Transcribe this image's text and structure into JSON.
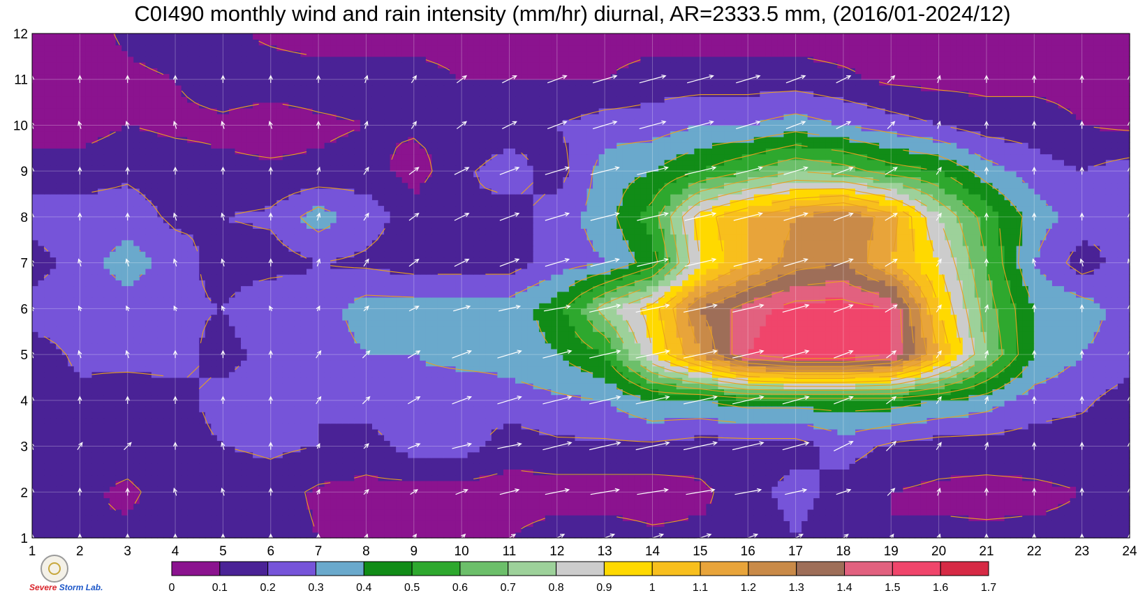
{
  "title": "C0I490 monthly wind and rain intensity (mm/hr) diurnal, AR=2333.5 mm, (2016/01-2024/12)",
  "logo": {
    "text_a": "Severe",
    "text_b": "Storm",
    "text_c": "Lab."
  },
  "chart_data": {
    "type": "heatmap",
    "title": "C0I490 monthly wind and rain intensity (mm/hr) diurnal, AR=2333.5 mm, (2016/01-2024/12)",
    "xlabel": "",
    "ylabel": "",
    "xlim": [
      1,
      24
    ],
    "ylim": [
      1,
      12
    ],
    "xticks": [
      1,
      2,
      3,
      4,
      5,
      6,
      7,
      8,
      9,
      10,
      11,
      12,
      13,
      14,
      15,
      16,
      17,
      18,
      19,
      20,
      21,
      22,
      23,
      24
    ],
    "yticks": [
      1,
      2,
      3,
      4,
      5,
      6,
      7,
      8,
      9,
      10,
      11,
      12
    ],
    "grid": true,
    "colorbar": {
      "placement": "bottom",
      "levels": [
        0,
        0.1,
        0.2,
        0.3,
        0.4,
        0.5,
        0.6,
        0.7,
        0.8,
        0.9,
        1,
        1.1,
        1.2,
        1.3,
        1.4,
        1.5,
        1.6,
        1.7
      ],
      "labels": [
        "0",
        "0.1",
        "0.2",
        "0.3",
        "0.4",
        "0.5",
        "0.6",
        "0.7",
        "0.8",
        "0.9",
        "1",
        "1.1",
        "1.2",
        "1.3",
        "1.4",
        "1.5",
        "1.6",
        "1.7"
      ],
      "colors": [
        "#8b138f",
        "#4a2296",
        "#7654d9",
        "#6aa9cc",
        "#118c17",
        "#2ea82e",
        "#6cbf6a",
        "#9dd19a",
        "#cccccc",
        "#ffd900",
        "#f8bf1d",
        "#e8a43a",
        "#c98a48",
        "#9e6e58",
        "#e2617f",
        "#f0456b",
        "#d62a45"
      ]
    },
    "x": [
      1,
      2,
      3,
      4,
      5,
      6,
      7,
      8,
      9,
      10,
      11,
      12,
      13,
      14,
      15,
      16,
      17,
      18,
      19,
      20,
      21,
      22,
      23,
      24
    ],
    "y": [
      1,
      2,
      3,
      4,
      5,
      6,
      7,
      8,
      9,
      10,
      11,
      12
    ],
    "rain": [
      [
        0.15,
        0.1,
        0.12,
        0.17,
        0.18,
        0.15,
        0.1,
        0.1,
        0.1,
        0.1,
        0.1,
        0.15,
        0.15,
        0.12,
        0.12,
        0.1,
        0.2,
        0.1,
        0.1,
        0.12,
        0.12,
        0.12,
        0.12,
        0.15
      ],
      [
        0.15,
        0.12,
        0.08,
        0.15,
        0.12,
        0.15,
        0.08,
        0.07,
        0.05,
        0.05,
        0.05,
        0.05,
        0.05,
        0.05,
        0.08,
        0.15,
        0.25,
        0.15,
        0.1,
        0.08,
        0.07,
        0.08,
        0.1,
        0.15
      ],
      [
        0.15,
        0.15,
        0.15,
        0.15,
        0.2,
        0.22,
        0.2,
        0.15,
        0.25,
        0.25,
        0.15,
        0.18,
        0.18,
        0.18,
        0.15,
        0.15,
        0.15,
        0.25,
        0.18,
        0.15,
        0.15,
        0.15,
        0.15,
        0.15
      ],
      [
        0.15,
        0.18,
        0.12,
        0.15,
        0.25,
        0.25,
        0.2,
        0.25,
        0.25,
        0.2,
        0.25,
        0.28,
        0.3,
        0.4,
        0.4,
        0.45,
        0.45,
        0.45,
        0.45,
        0.4,
        0.35,
        0.25,
        0.22,
        0.15
      ],
      [
        0.15,
        0.22,
        0.25,
        0.25,
        0.15,
        0.25,
        0.25,
        0.3,
        0.3,
        0.35,
        0.35,
        0.4,
        0.5,
        0.9,
        1.2,
        1.5,
        1.6,
        1.6,
        1.5,
        1.1,
        0.7,
        0.4,
        0.3,
        0.25
      ],
      [
        0.25,
        0.25,
        0.25,
        0.22,
        0.2,
        0.3,
        0.25,
        0.35,
        0.35,
        0.35,
        0.35,
        0.45,
        0.75,
        0.95,
        1.3,
        1.45,
        1.55,
        1.55,
        1.5,
        1.0,
        0.65,
        0.4,
        0.35,
        0.25
      ],
      [
        0.15,
        0.25,
        0.35,
        0.25,
        0.15,
        0.15,
        0.2,
        0.18,
        0.15,
        0.15,
        0.15,
        0.25,
        0.3,
        0.45,
        0.9,
        1.1,
        1.25,
        1.3,
        1.1,
        0.9,
        0.6,
        0.3,
        0.15,
        0.25
      ],
      [
        0.25,
        0.25,
        0.25,
        0.18,
        0.2,
        0.22,
        0.35,
        0.25,
        0.15,
        0.2,
        0.15,
        0.25,
        0.35,
        0.55,
        0.95,
        1.1,
        1.2,
        1.3,
        1.15,
        0.8,
        0.55,
        0.35,
        0.25,
        0.2
      ],
      [
        0.15,
        0.15,
        0.18,
        0.15,
        0.12,
        0.12,
        0.12,
        0.15,
        0.05,
        0.18,
        0.25,
        0.15,
        0.35,
        0.4,
        0.5,
        0.6,
        0.7,
        0.65,
        0.55,
        0.5,
        0.35,
        0.25,
        0.2,
        0.25
      ],
      [
        0.05,
        0.05,
        0.1,
        0.08,
        0.08,
        0.05,
        0.08,
        0.1,
        0.12,
        0.12,
        0.15,
        0.2,
        0.25,
        0.25,
        0.3,
        0.3,
        0.35,
        0.3,
        0.25,
        0.2,
        0.15,
        0.15,
        0.1,
        0.08
      ],
      [
        0.05,
        0.05,
        0.08,
        0.1,
        0.15,
        0.15,
        0.15,
        0.15,
        0.15,
        0.1,
        0.1,
        0.1,
        0.1,
        0.15,
        0.15,
        0.15,
        0.15,
        0.12,
        0.08,
        0.07,
        0.07,
        0.07,
        0.07,
        0.08
      ],
      [
        0.05,
        0.05,
        0.12,
        0.15,
        0.12,
        0.08,
        0.05,
        0.05,
        0.05,
        0.05,
        0.05,
        0.05,
        0.05,
        0.05,
        0.05,
        0.05,
        0.05,
        0.05,
        0.05,
        0.05,
        0.05,
        0.05,
        0.05,
        0.05
      ]
    ],
    "wind_vectors": {
      "description": "white arrows at every hour/month grid node",
      "hours": [
        1,
        2,
        3,
        4,
        5,
        6,
        7,
        8,
        9,
        10,
        11,
        12,
        13,
        14,
        15,
        16,
        17,
        18,
        19,
        20,
        21,
        22,
        23,
        24
      ],
      "months": [
        1,
        2,
        3,
        4,
        5,
        6,
        7,
        8,
        9,
        10,
        11,
        12
      ],
      "u": [
        [
          0.0,
          0.0,
          0.0,
          0.0,
          0.0,
          0.0,
          0.0,
          0.1,
          0.2,
          0.3,
          0.5,
          0.6,
          0.8,
          0.9,
          0.9,
          0.8,
          0.6,
          0.4,
          0.2,
          0.1,
          0.0,
          0.0,
          0.0,
          0.0
        ],
        [
          0.0,
          0.0,
          0.0,
          -0.1,
          -0.1,
          0.0,
          0.1,
          0.2,
          0.3,
          0.5,
          0.8,
          1.0,
          1.2,
          1.3,
          1.2,
          1.1,
          0.9,
          0.6,
          0.3,
          0.1,
          0.0,
          0.0,
          0.0,
          0.0
        ],
        [
          -0.1,
          0.2,
          0.3,
          0.0,
          -0.1,
          0.0,
          0.1,
          0.2,
          0.5,
          0.8,
          1.0,
          1.2,
          1.3,
          1.4,
          1.4,
          1.3,
          1.1,
          0.8,
          0.4,
          0.2,
          0.1,
          0.0,
          0.0,
          0.0
        ],
        [
          0.0,
          0.0,
          0.0,
          0.0,
          0.0,
          0.0,
          0.2,
          0.3,
          0.5,
          0.8,
          1.0,
          1.2,
          1.3,
          1.4,
          1.4,
          1.3,
          1.1,
          0.8,
          0.4,
          0.2,
          0.1,
          0.0,
          0.0,
          0.0
        ],
        [
          -0.1,
          -0.1,
          -0.1,
          0.0,
          0.0,
          0.0,
          0.2,
          0.3,
          0.5,
          0.8,
          1.0,
          1.2,
          1.3,
          1.4,
          1.4,
          1.3,
          1.1,
          0.8,
          0.4,
          0.2,
          0.1,
          0.0,
          0.0,
          0.0
        ],
        [
          -0.1,
          -0.1,
          -0.1,
          -0.1,
          -0.1,
          -0.1,
          0.1,
          0.2,
          0.4,
          0.7,
          0.9,
          1.1,
          1.3,
          1.4,
          1.4,
          1.3,
          1.1,
          0.8,
          0.5,
          0.2,
          0.1,
          0.0,
          0.0,
          0.0
        ],
        [
          -0.1,
          -0.1,
          -0.1,
          -0.1,
          -0.1,
          0.0,
          0.1,
          0.2,
          0.4,
          0.6,
          0.8,
          1.0,
          1.2,
          1.3,
          1.3,
          1.2,
          1.0,
          0.8,
          0.5,
          0.2,
          0.0,
          -0.1,
          -0.1,
          -0.1
        ],
        [
          0.0,
          0.0,
          0.0,
          -0.1,
          -0.1,
          0.0,
          0.1,
          0.2,
          0.4,
          0.6,
          0.8,
          1.0,
          1.2,
          1.3,
          1.3,
          1.2,
          1.0,
          0.8,
          0.5,
          0.2,
          0.0,
          0.0,
          0.0,
          0.0
        ],
        [
          0.0,
          0.0,
          0.0,
          0.0,
          0.0,
          0.0,
          0.1,
          0.2,
          0.4,
          0.6,
          0.8,
          1.0,
          1.2,
          1.3,
          1.3,
          1.2,
          1.0,
          0.8,
          0.5,
          0.2,
          0.0,
          0.0,
          0.0,
          0.0
        ],
        [
          -0.1,
          -0.1,
          -0.1,
          -0.1,
          -0.1,
          -0.1,
          0.0,
          0.1,
          0.2,
          0.4,
          0.6,
          0.8,
          1.0,
          1.1,
          1.1,
          1.0,
          0.8,
          0.6,
          0.3,
          0.1,
          0.0,
          0.0,
          0.0,
          0.0
        ],
        [
          0.0,
          0.0,
          0.0,
          0.0,
          0.0,
          0.0,
          0.0,
          0.1,
          0.2,
          0.4,
          0.6,
          0.8,
          1.0,
          1.1,
          1.1,
          1.0,
          0.8,
          0.6,
          0.3,
          0.1,
          0.0,
          0.0,
          0.0,
          0.0
        ],
        [
          0.0,
          0.0,
          0.0,
          0.0,
          0.0,
          0.0,
          0.0,
          0.0,
          0.0,
          0.0,
          0.0,
          0.0,
          0.0,
          0.0,
          0.0,
          0.0,
          0.0,
          0.0,
          0.0,
          0.0,
          0.0,
          0.0,
          0.0,
          0.0
        ]
      ],
      "v": [
        [
          0.3,
          0.3,
          0.3,
          0.3,
          0.3,
          0.3,
          0.3,
          0.3,
          0.3,
          0.3,
          0.3,
          0.3,
          0.3,
          0.3,
          0.3,
          0.3,
          0.3,
          0.3,
          0.3,
          0.3,
          0.3,
          0.3,
          0.3,
          0.3
        ],
        [
          0.3,
          0.3,
          0.3,
          0.3,
          0.3,
          0.3,
          0.2,
          0.2,
          0.2,
          0.2,
          0.2,
          0.2,
          0.2,
          0.2,
          0.2,
          0.2,
          0.2,
          0.2,
          0.3,
          0.3,
          0.3,
          0.3,
          0.3,
          0.3
        ],
        [
          0.3,
          0.3,
          0.3,
          0.3,
          0.3,
          0.3,
          0.2,
          0.2,
          0.2,
          0.2,
          0.2,
          0.3,
          0.3,
          0.3,
          0.3,
          0.3,
          0.3,
          0.4,
          0.4,
          0.3,
          0.3,
          0.3,
          0.3,
          0.3
        ],
        [
          0.3,
          0.3,
          0.3,
          0.3,
          0.3,
          0.3,
          0.3,
          0.3,
          0.3,
          0.3,
          0.3,
          0.3,
          0.3,
          0.3,
          0.3,
          0.3,
          0.3,
          0.3,
          0.3,
          0.3,
          0.3,
          0.3,
          0.3,
          0.3
        ],
        [
          0.3,
          0.3,
          0.3,
          0.3,
          0.3,
          0.3,
          0.3,
          0.3,
          0.3,
          0.3,
          0.3,
          0.3,
          0.3,
          0.3,
          0.3,
          0.3,
          0.3,
          0.3,
          0.3,
          0.3,
          0.3,
          0.3,
          0.3,
          0.3
        ],
        [
          0.2,
          0.2,
          0.2,
          0.2,
          0.2,
          0.2,
          0.2,
          0.2,
          0.2,
          0.2,
          0.2,
          0.2,
          0.3,
          0.3,
          0.3,
          0.3,
          0.3,
          0.3,
          0.3,
          0.3,
          0.3,
          0.3,
          0.3,
          0.3
        ],
        [
          0.3,
          0.3,
          0.3,
          0.3,
          0.3,
          0.3,
          0.3,
          0.3,
          0.3,
          0.3,
          0.3,
          0.3,
          0.3,
          0.3,
          0.3,
          0.3,
          0.3,
          0.3,
          0.3,
          0.3,
          0.3,
          0.3,
          0.3,
          0.3
        ],
        [
          0.3,
          0.3,
          0.3,
          0.3,
          0.3,
          0.3,
          0.3,
          0.3,
          0.3,
          0.3,
          0.3,
          0.3,
          0.3,
          0.3,
          0.3,
          0.3,
          0.3,
          0.3,
          0.3,
          0.3,
          0.3,
          0.3,
          0.3,
          0.3
        ],
        [
          0.3,
          0.3,
          0.3,
          0.3,
          0.3,
          0.3,
          0.3,
          0.3,
          0.3,
          0.3,
          0.3,
          0.3,
          0.3,
          0.3,
          0.3,
          0.3,
          0.3,
          0.3,
          0.3,
          0.3,
          0.3,
          0.3,
          0.3,
          0.3
        ],
        [
          0.3,
          0.3,
          0.3,
          0.3,
          0.3,
          0.3,
          0.3,
          0.3,
          0.3,
          0.3,
          0.3,
          0.3,
          0.3,
          0.3,
          0.3,
          0.3,
          0.3,
          0.3,
          0.3,
          0.3,
          0.3,
          0.3,
          0.3,
          0.3
        ],
        [
          0.3,
          0.3,
          0.3,
          0.3,
          0.3,
          0.3,
          0.3,
          0.3,
          0.3,
          0.3,
          0.3,
          0.3,
          0.3,
          0.3,
          0.3,
          0.3,
          0.3,
          0.3,
          0.3,
          0.3,
          0.3,
          0.3,
          0.3,
          0.3
        ],
        [
          0.0,
          0.0,
          0.0,
          0.0,
          0.0,
          0.0,
          0.0,
          0.0,
          0.0,
          0.0,
          0.0,
          0.0,
          0.0,
          0.0,
          0.0,
          0.0,
          0.0,
          0.0,
          0.0,
          0.0,
          0.0,
          0.0,
          0.0,
          0.0
        ]
      ]
    }
  }
}
